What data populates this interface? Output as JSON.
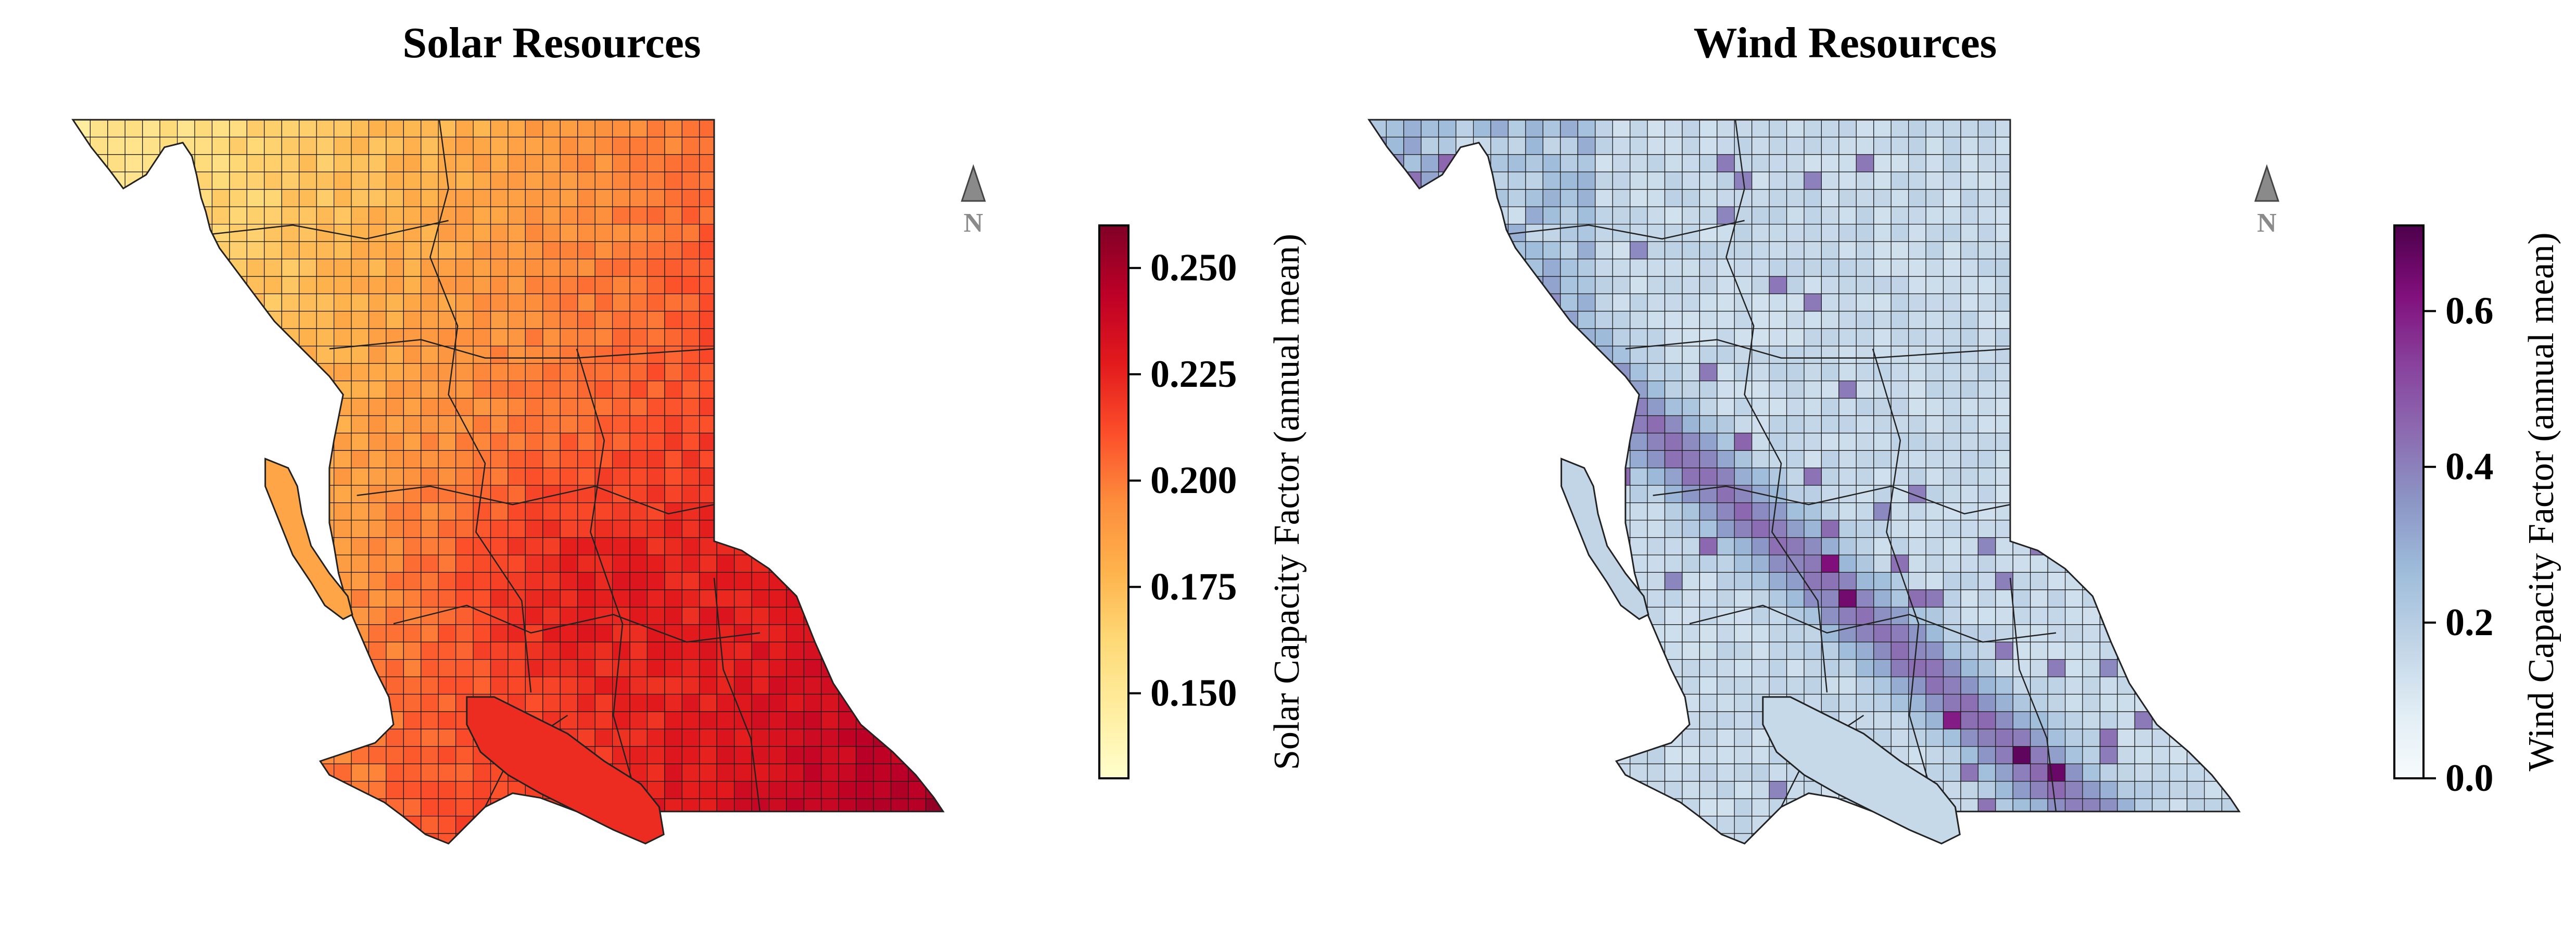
{
  "panels": [
    {
      "id": "solar",
      "title": "Solar Resources",
      "north_label": "N",
      "colorbar": {
        "label": "Solar Capacity Factor (annual mean)",
        "min": 0.13,
        "max": 0.26,
        "ticks": [
          0.15,
          0.175,
          0.2,
          0.225,
          0.25
        ],
        "tick_labels": [
          "0.150",
          "0.175",
          "0.200",
          "0.225",
          "0.250"
        ],
        "colormap": "YlOrRd",
        "stops": [
          "#ffffcc",
          "#ffeda0",
          "#fed976",
          "#feb24c",
          "#fd8d3c",
          "#fc4e2a",
          "#e31a1c",
          "#bd0026",
          "#800026"
        ]
      }
    },
    {
      "id": "wind",
      "title": "Wind Resources",
      "north_label": "N",
      "colorbar": {
        "label": "Wind Capacity Factor (annual mean)",
        "min": 0.0,
        "max": 0.71,
        "ticks": [
          0.0,
          0.2,
          0.4,
          0.6
        ],
        "tick_labels": [
          "0.0",
          "0.2",
          "0.4",
          "0.6"
        ],
        "colormap": "BuPu",
        "stops": [
          "#f7fcfd",
          "#e0ecf4",
          "#bfd3e6",
          "#9ebcda",
          "#8c96c6",
          "#8c6bb1",
          "#88419d",
          "#810f7c",
          "#4d004b"
        ]
      }
    }
  ]
}
